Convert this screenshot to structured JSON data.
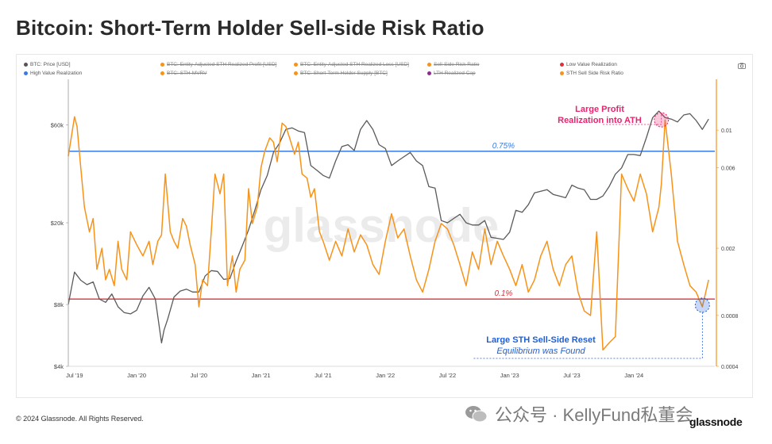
{
  "title": "Bitcoin: Short-Term Holder Sell-side Risk Ratio",
  "legend": {
    "row1": [
      {
        "label": "BTC: Price [USD]",
        "color": "#555555",
        "struck": false
      },
      {
        "label": "BTC: Entity-Adjusted STH Realized Profit [USD]",
        "color": "#f7931a",
        "struck": true
      },
      {
        "label": "BTC: Entity-Adjusted STH Realized Loss [USD]",
        "color": "#f7931a",
        "struck": true
      },
      {
        "label": "Sell-Side Risk Ratio",
        "color": "#f7931a",
        "struck": true
      },
      {
        "label": "Low Value Realization",
        "color": "#e0303a",
        "struck": false
      }
    ],
    "row2": [
      {
        "label": "High Value Realization",
        "color": "#3b7be0",
        "struck": false
      },
      {
        "label": "BTC: STH-MVRV",
        "color": "#f7931a",
        "struck": true
      },
      {
        "label": "BTC: Short-Term Holder Supply [BTC]",
        "color": "#f7931a",
        "struck": true
      },
      {
        "label": "LTH Realized Cap",
        "color": "#8b2d8b",
        "struck": true
      },
      {
        "label": "STH Sell Side Risk Ratio",
        "color": "#f7931a",
        "struck": false
      }
    ]
  },
  "colors": {
    "price": "#5a5a5a",
    "ratio": "#f7931a",
    "high": "#3b7be0",
    "low": "#e0303a",
    "annotation_pink": "#e8246e",
    "annotation_blue": "#1f5fd6"
  },
  "annotations": {
    "top_line1": "Large Profit",
    "top_line2": "Realization into ATH",
    "bottom_line1": "Large STH Sell-Side Reset",
    "bottom_line2": "Equilibrium was Found"
  },
  "watermark": "glassnode",
  "footer": {
    "copyright": "© 2024 Glassnode. All Rights Reserved.",
    "wechat": "公众号 · KellyFund私董会",
    "logo": "glassnode"
  },
  "chart_data": {
    "type": "line",
    "title": "Bitcoin: Short-Term Holder Sell-side Risk Ratio",
    "x_tick_labels": [
      "Jul '19",
      "Jan '20",
      "Jul '20",
      "Jan '21",
      "Jul '21",
      "Jan '22",
      "Jul '22",
      "Jan '23",
      "Jul '23",
      "Jan '24"
    ],
    "x_range": [
      2019.45,
      2024.65
    ],
    "y_left": {
      "scale": "log",
      "range": [
        4000,
        100000
      ],
      "ticks": [
        4000,
        8000,
        20000,
        60000
      ],
      "tick_labels": [
        "$4k",
        "$8k",
        "$20k",
        "$60k"
      ]
    },
    "y_right": {
      "scale": "log",
      "range": [
        0.0004,
        0.02
      ],
      "ticks": [
        0.0004,
        0.0008,
        0.002,
        0.006,
        0.01
      ],
      "tick_labels": [
        "0.0004",
        "0.0008",
        "0.002",
        "0.006",
        "0.01"
      ]
    },
    "thresholds": [
      {
        "name": "High Value Realization",
        "value": 0.0075,
        "label": "0.75%"
      },
      {
        "name": "Low Value Realization",
        "value": 0.001,
        "label": "0.1%"
      }
    ],
    "series": [
      {
        "name": "BTC: Price [USD]",
        "axis": "left",
        "x": [
          2019.45,
          2019.5,
          2019.55,
          2019.6,
          2019.65,
          2019.7,
          2019.75,
          2019.8,
          2019.85,
          2019.9,
          2019.95,
          2020.0,
          2020.05,
          2020.1,
          2020.15,
          2020.2,
          2020.22,
          2020.25,
          2020.3,
          2020.35,
          2020.4,
          2020.45,
          2020.5,
          2020.55,
          2020.6,
          2020.65,
          2020.7,
          2020.75,
          2020.8,
          2020.85,
          2020.9,
          2020.95,
          2021.0,
          2021.05,
          2021.1,
          2021.15,
          2021.2,
          2021.25,
          2021.3,
          2021.35,
          2021.4,
          2021.45,
          2021.5,
          2021.55,
          2021.6,
          2021.65,
          2021.7,
          2021.75,
          2021.8,
          2021.85,
          2021.9,
          2021.95,
          2022.0,
          2022.05,
          2022.1,
          2022.15,
          2022.2,
          2022.25,
          2022.3,
          2022.35,
          2022.4,
          2022.45,
          2022.5,
          2022.55,
          2022.6,
          2022.65,
          2022.7,
          2022.75,
          2022.8,
          2022.85,
          2022.9,
          2022.95,
          2023.0,
          2023.05,
          2023.1,
          2023.15,
          2023.2,
          2023.25,
          2023.3,
          2023.35,
          2023.4,
          2023.45,
          2023.5,
          2023.55,
          2023.6,
          2023.65,
          2023.7,
          2023.75,
          2023.8,
          2023.85,
          2023.9,
          2023.95,
          2024.0,
          2024.05,
          2024.1,
          2024.15,
          2024.2,
          2024.25,
          2024.3,
          2024.35,
          2024.4,
          2024.45,
          2024.5,
          2024.55,
          2024.6
        ],
        "y": [
          8000,
          11500,
          10500,
          10000,
          10300,
          8500,
          8200,
          9000,
          7800,
          7300,
          7200,
          7500,
          8800,
          9700,
          8500,
          5200,
          6000,
          6800,
          8700,
          9300,
          9500,
          9200,
          9200,
          11000,
          11700,
          11600,
          10600,
          10700,
          13000,
          15500,
          18500,
          23000,
          29000,
          34000,
          44000,
          49000,
          57000,
          58000,
          56000,
          55000,
          38000,
          36000,
          34000,
          33000,
          40000,
          47000,
          48000,
          45000,
          57000,
          63000,
          57000,
          48000,
          46000,
          38000,
          40000,
          42000,
          44000,
          40000,
          38000,
          30000,
          29500,
          20500,
          20000,
          21000,
          22000,
          20000,
          19500,
          19500,
          20500,
          17000,
          16800,
          16600,
          18000,
          23000,
          22500,
          24500,
          28000,
          28500,
          29000,
          27500,
          27000,
          26500,
          30500,
          29500,
          29000,
          26000,
          26000,
          27000,
          30000,
          34500,
          37000,
          43000,
          43000,
          42500,
          52000,
          65000,
          70000,
          65000,
          64000,
          62000,
          67000,
          68000,
          63000,
          57000,
          64000
        ]
      },
      {
        "name": "STH Sell Side Risk Ratio",
        "axis": "right",
        "x": [
          2019.45,
          2019.5,
          2019.52,
          2019.55,
          2019.58,
          2019.62,
          2019.65,
          2019.68,
          2019.72,
          2019.75,
          2019.78,
          2019.82,
          2019.85,
          2019.88,
          2019.92,
          2019.95,
          2020.0,
          2020.05,
          2020.1,
          2020.13,
          2020.17,
          2020.2,
          2020.23,
          2020.27,
          2020.3,
          2020.33,
          2020.37,
          2020.4,
          2020.43,
          2020.47,
          2020.5,
          2020.53,
          2020.57,
          2020.6,
          2020.63,
          2020.67,
          2020.7,
          2020.73,
          2020.77,
          2020.8,
          2020.83,
          2020.87,
          2020.9,
          2020.93,
          2020.97,
          2021.0,
          2021.03,
          2021.07,
          2021.1,
          2021.13,
          2021.17,
          2021.2,
          2021.23,
          2021.27,
          2021.3,
          2021.33,
          2021.37,
          2021.4,
          2021.43,
          2021.47,
          2021.5,
          2021.55,
          2021.6,
          2021.65,
          2021.7,
          2021.75,
          2021.8,
          2021.85,
          2021.9,
          2021.95,
          2022.0,
          2022.05,
          2022.1,
          2022.15,
          2022.2,
          2022.25,
          2022.3,
          2022.35,
          2022.4,
          2022.45,
          2022.5,
          2022.55,
          2022.6,
          2022.65,
          2022.7,
          2022.75,
          2022.8,
          2022.85,
          2022.9,
          2022.95,
          2023.0,
          2023.05,
          2023.1,
          2023.15,
          2023.2,
          2023.25,
          2023.3,
          2023.35,
          2023.4,
          2023.45,
          2023.5,
          2023.55,
          2023.6,
          2023.65,
          2023.7,
          2023.75,
          2023.8,
          2023.85,
          2023.9,
          2023.95,
          2024.0,
          2024.05,
          2024.1,
          2024.15,
          2024.2,
          2024.22,
          2024.25,
          2024.3,
          2024.35,
          2024.4,
          2024.45,
          2024.5,
          2024.55,
          2024.6
        ],
        "y": [
          0.007,
          0.012,
          0.0105,
          0.006,
          0.0035,
          0.0025,
          0.003,
          0.0015,
          0.002,
          0.0013,
          0.0015,
          0.0012,
          0.0022,
          0.0015,
          0.0013,
          0.0025,
          0.0021,
          0.0018,
          0.0022,
          0.0016,
          0.0022,
          0.0024,
          0.0055,
          0.0025,
          0.0022,
          0.002,
          0.003,
          0.0027,
          0.0021,
          0.0016,
          0.0009,
          0.0013,
          0.0012,
          0.0025,
          0.0055,
          0.0042,
          0.0055,
          0.0012,
          0.0018,
          0.0011,
          0.0015,
          0.0017,
          0.0045,
          0.0028,
          0.0035,
          0.006,
          0.0075,
          0.009,
          0.0085,
          0.0065,
          0.011,
          0.0105,
          0.009,
          0.0072,
          0.0085,
          0.0055,
          0.0052,
          0.004,
          0.0045,
          0.0025,
          0.0022,
          0.0017,
          0.0022,
          0.0018,
          0.0026,
          0.0019,
          0.0024,
          0.0021,
          0.0016,
          0.0014,
          0.0022,
          0.0032,
          0.0023,
          0.0026,
          0.0018,
          0.0013,
          0.0011,
          0.0015,
          0.0022,
          0.0028,
          0.0026,
          0.0021,
          0.0016,
          0.0012,
          0.0019,
          0.0015,
          0.0026,
          0.0016,
          0.0022,
          0.0018,
          0.0015,
          0.0012,
          0.0016,
          0.0011,
          0.0013,
          0.0018,
          0.0022,
          0.0015,
          0.0012,
          0.0016,
          0.0018,
          0.0011,
          0.00085,
          0.0008,
          0.0025,
          0.0005,
          0.00055,
          0.0006,
          0.0055,
          0.0045,
          0.0038,
          0.0055,
          0.0042,
          0.0025,
          0.0035,
          0.0048,
          0.0115,
          0.0055,
          0.0022,
          0.0016,
          0.0012,
          0.0011,
          0.0009,
          0.0013
        ]
      }
    ]
  }
}
